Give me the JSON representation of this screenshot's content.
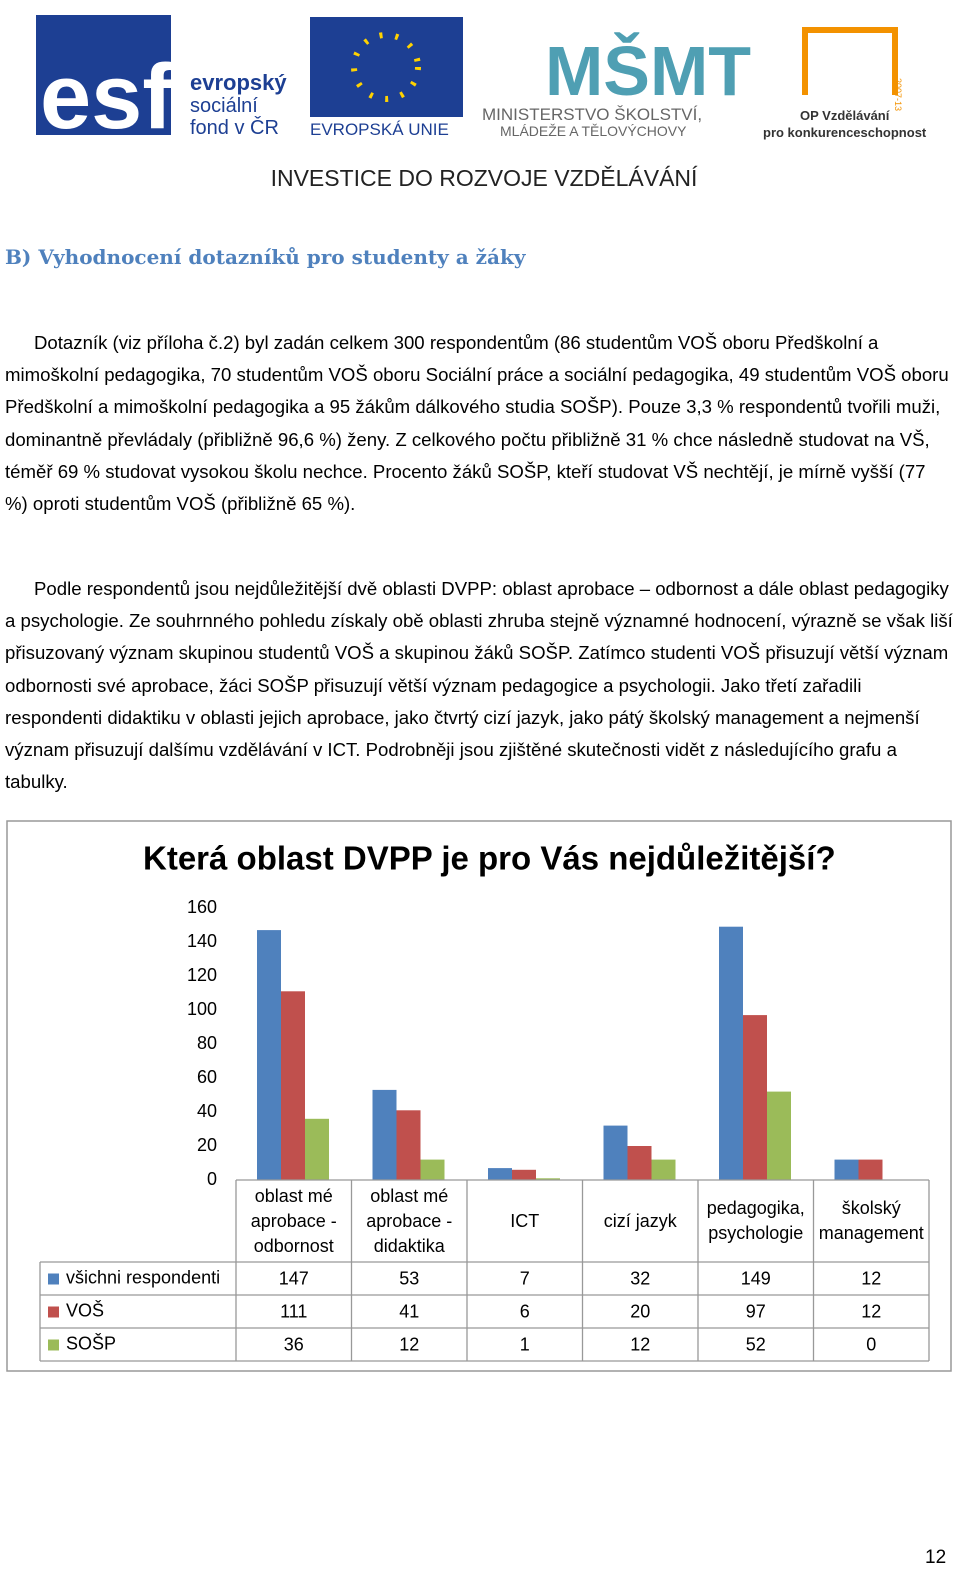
{
  "header": {
    "esf": {
      "mark": "esf",
      "lines": [
        "evropský",
        "sociální",
        "fond v ČR"
      ]
    },
    "eu": "EVROPSKÁ UNIE",
    "msmt": {
      "mark": "MŠMT",
      "lines": [
        "MINISTERSTVO ŠKOLSTVÍ,",
        "MLÁDEŽE A TĚLOVÝCHOVY"
      ]
    },
    "op": {
      "lines": [
        "OP Vzdělávání",
        "pro konkurenceschopnost"
      ],
      "years": "2007-13"
    },
    "tagline": "INVESTICE DO ROZVOJE VZDĚLÁVÁNÍ"
  },
  "heading": "B) Vyhodnocení dotazníků pro studenty a žáky",
  "paragraphs": [
    "Dotazník (viz příloha č.2) byl zadán celkem 300 respondentům (86 studentům VOŠ oboru Předškolní a mimoškolní pedagogika, 70 studentům VOŠ oboru Sociální práce a sociální pedagogika, 49 studentům VOŠ oboru Předškolní a mimoškolní pedagogika a 95 žákům dálkového studia SOŠP). Pouze 3,3 % respondentů tvořili muži, dominantně převládaly (přibližně 96,6 %) ženy. Z celkového počtu přibližně 31 % chce následně studovat na VŠ, téměř 69 % studovat vysokou školu nechce. Procento žáků SOŠP, kteří studovat VŠ nechtějí, je mírně vyšší (77 %) oproti studentům VOŠ (přibližně 65 %).",
    "Podle respondentů jsou nejdůležitější dvě oblasti DVPP: oblast aprobace – odbornost a dále oblast pedagogiky a psychologie. Ze souhrnného pohledu získaly obě oblasti zhruba stejně významné hodnocení, výrazně se však liší přisuzovaný význam skupinou studentů VOŠ a skupinou žáků SOŠP. Zatímco studenti VOŠ přisuzují větší význam odbornosti své aprobace, žáci SOŠP přisuzují větší význam pedagogice a psychologii. Jako třetí zařadili respondenti didaktiku v oblasti jejich aprobace, jako čtvrtý cizí jazyk, jako pátý školský management a nejmenší význam přisuzují dalšímu vzdělávání v ICT. Podrobněji jsou zjištěné skutečnosti vidět z následujícího grafu a tabulky."
  ],
  "chart_data": {
    "type": "bar",
    "title": "Která oblast DVPP je pro Vás nejdůležitější?",
    "categories": [
      "oblast mé aprobace - odbornost",
      "oblast mé aprobace - didaktika",
      "ICT",
      "cizí jazyk",
      "pedagogika, psychologie",
      "školský management"
    ],
    "series": [
      {
        "name": "všichni respondenti",
        "color": "#4f81bd",
        "values": [
          147,
          53,
          7,
          32,
          149,
          12
        ]
      },
      {
        "name": "VOŠ",
        "color": "#c0504d",
        "values": [
          111,
          41,
          6,
          20,
          97,
          12
        ]
      },
      {
        "name": "SOŠP",
        "color": "#9bbb59",
        "values": [
          36,
          12,
          1,
          12,
          52,
          0
        ]
      }
    ],
    "ylim": [
      0,
      160
    ],
    "yticks": [
      0,
      20,
      40,
      60,
      80,
      100,
      120,
      140,
      160
    ],
    "grid": false
  },
  "page_number": "12"
}
